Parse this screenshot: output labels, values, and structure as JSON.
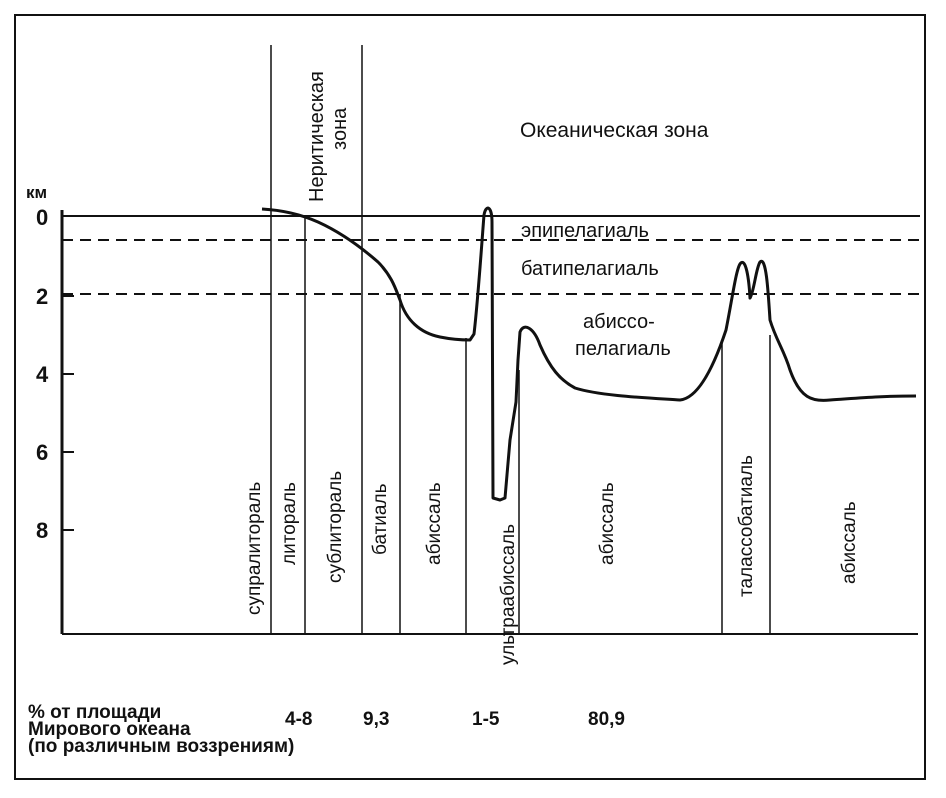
{
  "title": "Океаническая зона",
  "neritic_zone": {
    "line1": "Неритическая",
    "line2": "зона"
  },
  "axis": {
    "unit": "км",
    "ticks": [
      "0",
      "2",
      "4",
      "6",
      "8"
    ]
  },
  "pelagic_layers": {
    "epipelagial": "эпипелагиаль",
    "bathypelagial": "батипелагиаль",
    "abyssopelagial_line1": "абиссо-",
    "abyssopelagial_line2": "пелагиаль"
  },
  "benthic_zones": [
    "супралитораль",
    "литораль",
    "сублитораль",
    "батиаль",
    "абиссаль",
    "ультраабиссаль",
    "абиссаль",
    "талассобатиаль",
    "абиссаль"
  ],
  "area_caption": {
    "line1": "% от площади",
    "line2": "Мирового океана",
    "line3": "(по различным воззрениям)"
  },
  "area_values": {
    "littoral_sublittoral": "4-8",
    "bathyal": "9,3",
    "ultraabyssal": "1-5",
    "abyssal": "80,9"
  }
}
